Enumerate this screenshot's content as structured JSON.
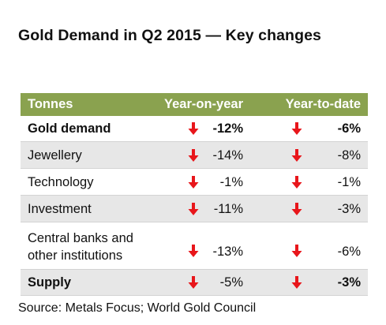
{
  "title": "Gold Demand in Q2 2015 — Key changes",
  "colors": {
    "header_bg": "#8aa24f",
    "row_shade": "#e7e7e7",
    "arrow": "#e8161b"
  },
  "table": {
    "headers": [
      "Tonnes",
      "Year-on-year",
      "Year-to-date"
    ],
    "rows": [
      {
        "label": "Gold demand",
        "yoy": "-12%",
        "ytd": "-6%",
        "yoy_icon": "down-arrow-icon",
        "ytd_icon": "down-arrow-icon"
      },
      {
        "label": "Jewellery",
        "yoy": "-14%",
        "ytd": "-8%",
        "yoy_icon": "down-arrow-icon",
        "ytd_icon": "down-arrow-icon"
      },
      {
        "label": "Technology",
        "yoy": "-1%",
        "ytd": "-1%",
        "yoy_icon": "down-arrow-icon",
        "ytd_icon": "down-arrow-icon"
      },
      {
        "label": "Investment",
        "yoy": "-11%",
        "ytd": "-3%",
        "yoy_icon": "down-arrow-icon",
        "ytd_icon": "down-arrow-icon"
      },
      {
        "label_line1": "Central banks and",
        "label_line2": "other institutions",
        "yoy": "-13%",
        "ytd": "-6%",
        "yoy_icon": "down-arrow-icon",
        "ytd_icon": "down-arrow-icon"
      },
      {
        "label": "Supply",
        "yoy": "-5%",
        "ytd": "-3%",
        "yoy_icon": "down-arrow-icon",
        "ytd_icon": "down-arrow-icon"
      }
    ]
  },
  "source": "Source: Metals Focus; World Gold Council"
}
